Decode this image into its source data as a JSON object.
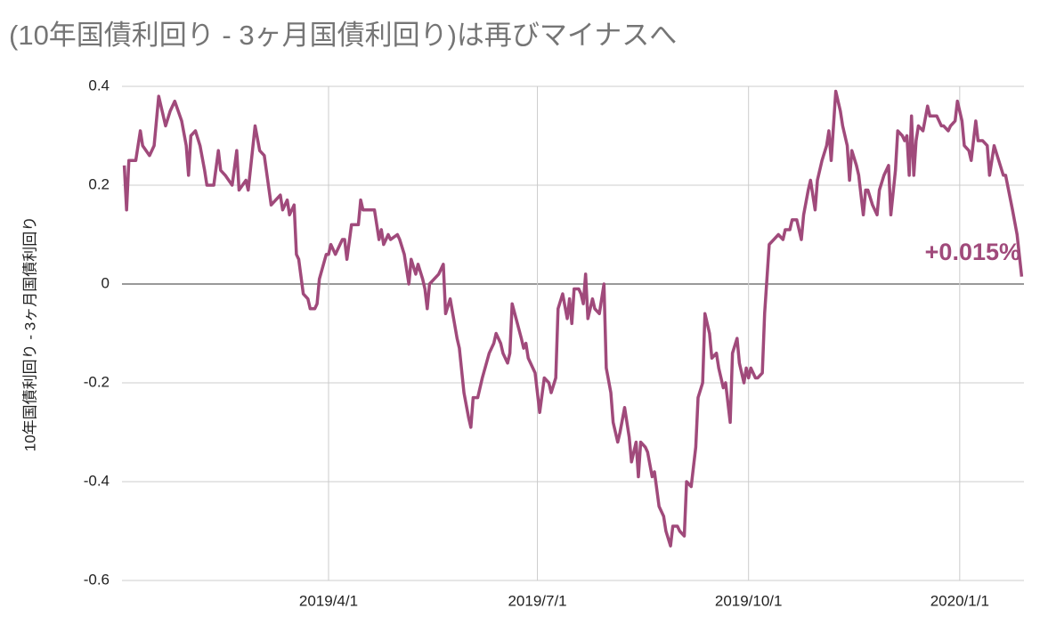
{
  "chart_data": {
    "type": "line",
    "title": "(10年国債利回り - 3ヶ月国債利回り)は再びマイナスへ",
    "y_label": "10年国債利回り - 3ヶ月国債利回り",
    "annotation": "+0.015%",
    "x": [
      "2019-01-02",
      "2019-01-03",
      "2019-01-04",
      "2019-01-07",
      "2019-01-09",
      "2019-01-10",
      "2019-01-13",
      "2019-01-15",
      "2019-01-17",
      "2019-01-20",
      "2019-01-22",
      "2019-01-24",
      "2019-01-27",
      "2019-01-29",
      "2019-01-30",
      "2019-01-31",
      "2019-02-02",
      "2019-02-04",
      "2019-02-06",
      "2019-02-07",
      "2019-02-10",
      "2019-02-12",
      "2019-02-13",
      "2019-02-15",
      "2019-02-18",
      "2019-02-20",
      "2019-02-21",
      "2019-02-24",
      "2019-02-25",
      "2019-02-28",
      "2019-03-02",
      "2019-03-04",
      "2019-03-07",
      "2019-03-11",
      "2019-03-12",
      "2019-03-14",
      "2019-03-15",
      "2019-03-17",
      "2019-03-18",
      "2019-03-19",
      "2019-03-21",
      "2019-03-23",
      "2019-03-24",
      "2019-03-26",
      "2019-03-27",
      "2019-03-28",
      "2019-03-31",
      "2019-04-01",
      "2019-04-02",
      "2019-04-04",
      "2019-04-07",
      "2019-04-08",
      "2019-04-09",
      "2019-04-11",
      "2019-04-14",
      "2019-04-15",
      "2019-04-16",
      "2019-04-21",
      "2019-04-23",
      "2019-04-24",
      "2019-04-25",
      "2019-04-27",
      "2019-04-28",
      "2019-05-01",
      "2019-05-02",
      "2019-05-04",
      "2019-05-06",
      "2019-05-07",
      "2019-05-09",
      "2019-05-10",
      "2019-05-12",
      "2019-05-13",
      "2019-05-14",
      "2019-05-15",
      "2019-05-17",
      "2019-05-19",
      "2019-05-21",
      "2019-05-22",
      "2019-05-24",
      "2019-05-27",
      "2019-05-28",
      "2019-05-30",
      "2019-06-01",
      "2019-06-02",
      "2019-06-03",
      "2019-06-05",
      "2019-06-07",
      "2019-06-10",
      "2019-06-12",
      "2019-06-13",
      "2019-06-15",
      "2019-06-16",
      "2019-06-18",
      "2019-06-19",
      "2019-06-20",
      "2019-06-24",
      "2019-06-25",
      "2019-06-26",
      "2019-06-27",
      "2019-06-30",
      "2019-07-01",
      "2019-07-02",
      "2019-07-04",
      "2019-07-06",
      "2019-07-07",
      "2019-07-09",
      "2019-07-10",
      "2019-07-12",
      "2019-07-14",
      "2019-07-15",
      "2019-07-16",
      "2019-07-17",
      "2019-07-19",
      "2019-07-20",
      "2019-07-21",
      "2019-07-22",
      "2019-07-23",
      "2019-07-25",
      "2019-07-26",
      "2019-07-28",
      "2019-07-30",
      "2019-07-31",
      "2019-08-02",
      "2019-08-03",
      "2019-08-05",
      "2019-08-06",
      "2019-08-08",
      "2019-08-10",
      "2019-08-11",
      "2019-08-13",
      "2019-08-14",
      "2019-08-15",
      "2019-08-17",
      "2019-08-18",
      "2019-08-20",
      "2019-08-21",
      "2019-08-23",
      "2019-08-25",
      "2019-08-26",
      "2019-08-28",
      "2019-08-29",
      "2019-08-31",
      "2019-09-01",
      "2019-09-03",
      "2019-09-04",
      "2019-09-06",
      "2019-09-07",
      "2019-09-08",
      "2019-09-09",
      "2019-09-11",
      "2019-09-12",
      "2019-09-14",
      "2019-09-15",
      "2019-09-17",
      "2019-09-18",
      "2019-09-20",
      "2019-09-21",
      "2019-09-23",
      "2019-09-24",
      "2019-09-26",
      "2019-09-27",
      "2019-09-29",
      "2019-09-30",
      "2019-10-01",
      "2019-10-02",
      "2019-10-04",
      "2019-10-05",
      "2019-10-07",
      "2019-10-08",
      "2019-10-10",
      "2019-10-12",
      "2019-10-14",
      "2019-10-16",
      "2019-10-17",
      "2019-10-19",
      "2019-10-20",
      "2019-10-22",
      "2019-10-24",
      "2019-10-25",
      "2019-10-27",
      "2019-10-28",
      "2019-10-30",
      "2019-10-31",
      "2019-11-02",
      "2019-11-04",
      "2019-11-05",
      "2019-11-06",
      "2019-11-08",
      "2019-11-10",
      "2019-11-11",
      "2019-11-13",
      "2019-11-14",
      "2019-11-15",
      "2019-11-17",
      "2019-11-18",
      "2019-11-20",
      "2019-11-21",
      "2019-11-22",
      "2019-11-24",
      "2019-11-26",
      "2019-11-27",
      "2019-11-29",
      "2019-12-01",
      "2019-12-02",
      "2019-12-04",
      "2019-12-05",
      "2019-12-07",
      "2019-12-08",
      "2019-12-09",
      "2019-12-10",
      "2019-12-11",
      "2019-12-12",
      "2019-12-13",
      "2019-12-14",
      "2019-12-16",
      "2019-12-18",
      "2019-12-19",
      "2019-12-21",
      "2019-12-22",
      "2019-12-24",
      "2019-12-25",
      "2019-12-27",
      "2019-12-28",
      "2019-12-30",
      "2019-12-31",
      "2020-01-02",
      "2020-01-03",
      "2020-01-05",
      "2020-01-06",
      "2020-01-08",
      "2020-01-09",
      "2020-01-11",
      "2020-01-13",
      "2020-01-14",
      "2020-01-16",
      "2020-01-18",
      "2020-01-20",
      "2020-01-21",
      "2020-01-24",
      "2020-01-26",
      "2020-01-28"
    ],
    "series": [
      {
        "color": "#a04a7b",
        "values": [
          0.24,
          0.15,
          0.25,
          0.25,
          0.31,
          0.28,
          0.26,
          0.28,
          0.38,
          0.32,
          0.35,
          0.37,
          0.33,
          0.28,
          0.22,
          0.3,
          0.31,
          0.28,
          0.23,
          0.2,
          0.2,
          0.27,
          0.23,
          0.22,
          0.2,
          0.27,
          0.19,
          0.21,
          0.19,
          0.32,
          0.27,
          0.26,
          0.16,
          0.18,
          0.15,
          0.17,
          0.14,
          0.16,
          0.06,
          0.05,
          -0.02,
          -0.03,
          -0.05,
          -0.05,
          -0.04,
          0.01,
          0.06,
          0.06,
          0.08,
          0.06,
          0.09,
          0.09,
          0.05,
          0.12,
          0.12,
          0.17,
          0.15,
          0.15,
          0.09,
          0.11,
          0.08,
          0.1,
          0.09,
          0.1,
          0.09,
          0.06,
          0.0,
          0.05,
          0.02,
          0.04,
          0.01,
          -0.01,
          -0.05,
          0.0,
          0.01,
          0.02,
          0.04,
          -0.06,
          -0.03,
          -0.11,
          -0.13,
          -0.22,
          -0.27,
          -0.29,
          -0.23,
          -0.23,
          -0.19,
          -0.14,
          -0.12,
          -0.1,
          -0.12,
          -0.14,
          -0.16,
          -0.14,
          -0.04,
          -0.11,
          -0.13,
          -0.12,
          -0.15,
          -0.18,
          -0.22,
          -0.26,
          -0.19,
          -0.2,
          -0.22,
          -0.19,
          -0.05,
          -0.02,
          -0.07,
          -0.03,
          -0.08,
          -0.01,
          -0.01,
          -0.02,
          -0.04,
          0.02,
          -0.07,
          -0.03,
          -0.05,
          -0.06,
          0.0,
          -0.17,
          -0.22,
          -0.28,
          -0.32,
          -0.3,
          -0.25,
          -0.31,
          -0.36,
          -0.32,
          -0.39,
          -0.32,
          -0.33,
          -0.34,
          -0.39,
          -0.38,
          -0.45,
          -0.47,
          -0.5,
          -0.53,
          -0.49,
          -0.49,
          -0.5,
          -0.51,
          -0.4,
          -0.41,
          -0.37,
          -0.33,
          -0.23,
          -0.2,
          -0.06,
          -0.1,
          -0.15,
          -0.14,
          -0.17,
          -0.21,
          -0.2,
          -0.28,
          -0.14,
          -0.11,
          -0.16,
          -0.2,
          -0.17,
          -0.19,
          -0.17,
          -0.19,
          -0.19,
          -0.18,
          -0.06,
          0.08,
          0.09,
          0.1,
          0.09,
          0.11,
          0.11,
          0.13,
          0.13,
          0.09,
          0.14,
          0.19,
          0.21,
          0.15,
          0.21,
          0.25,
          0.28,
          0.31,
          0.25,
          0.39,
          0.35,
          0.32,
          0.28,
          0.21,
          0.27,
          0.24,
          0.22,
          0.14,
          0.19,
          0.19,
          0.16,
          0.14,
          0.19,
          0.22,
          0.24,
          0.14,
          0.23,
          0.31,
          0.3,
          0.29,
          0.3,
          0.22,
          0.34,
          0.22,
          0.29,
          0.32,
          0.31,
          0.36,
          0.34,
          0.34,
          0.34,
          0.32,
          0.32,
          0.31,
          0.32,
          0.33,
          0.37,
          0.33,
          0.28,
          0.27,
          0.25,
          0.33,
          0.29,
          0.29,
          0.28,
          0.22,
          0.28,
          0.25,
          0.22,
          0.22,
          0.15,
          0.1,
          0.015
        ]
      }
    ],
    "xlim": [
      "2019-01-01",
      "2020-01-29"
    ],
    "xticks": [
      {
        "value": "2019-04-01",
        "label": "2019/4/1"
      },
      {
        "value": "2019-07-01",
        "label": "2019/7/1"
      },
      {
        "value": "2019-10-01",
        "label": "2019/10/1"
      },
      {
        "value": "2020-01-01",
        "label": "2020/1/1"
      }
    ],
    "ylim": [
      -0.6,
      0.4
    ],
    "yticks": [
      -0.6,
      -0.4,
      -0.2,
      0,
      0.2,
      0.4
    ],
    "grid": true
  }
}
